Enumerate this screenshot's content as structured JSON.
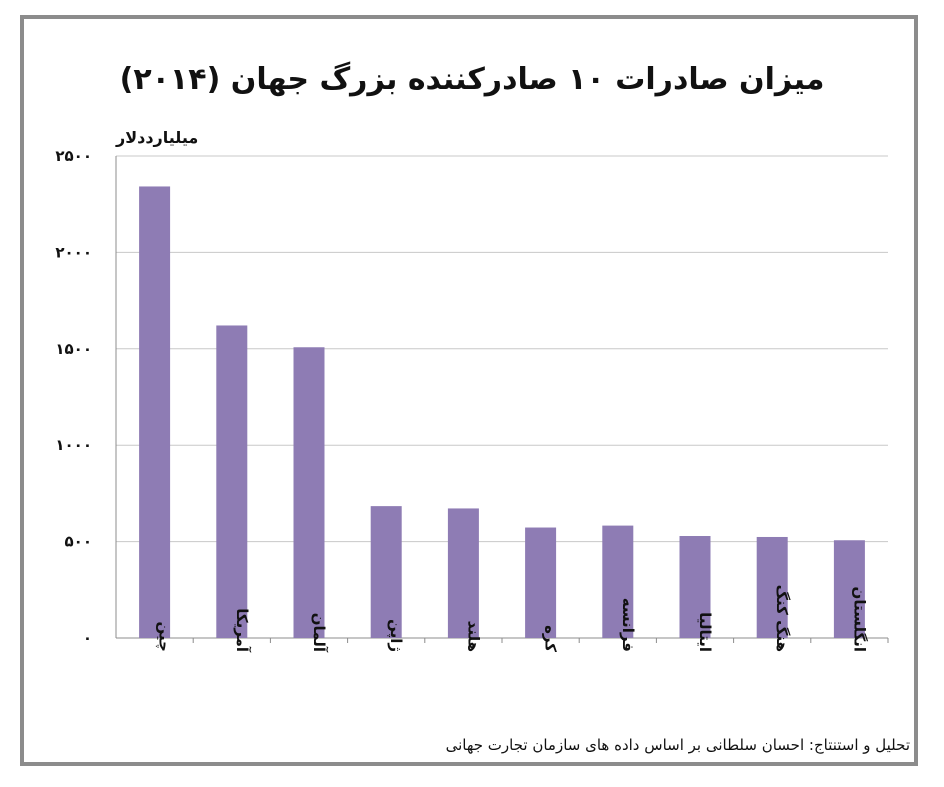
{
  "title": "میزان صادرات ۱۰ صادرکننده بزرگ جهان (۲۰۱۴)",
  "unit_label": "میلیارددلار",
  "source_note": "تحلیل و استنتاج: احسان سلطانی بر اساس داده های سازمان تجارت جهانی",
  "colors": {
    "bar": "#8e7cb4",
    "grid": "#c8c8c8",
    "axis": "#8c8c8c",
    "frame": "#8c8c8c"
  },
  "chart_data": {
    "type": "bar",
    "categories": [
      "چین",
      "آمریکا",
      "آلمان",
      "ژاپن",
      "هلند",
      "کره",
      "فرانسه",
      "ایتالیا",
      "هنگ کنگ",
      "انگلستان"
    ],
    "values": [
      2342,
      1621,
      1508,
      684,
      672,
      573,
      583,
      529,
      524,
      507
    ],
    "ylabel": "میلیارددلار",
    "ylim": [
      0,
      2500
    ],
    "yticks": [
      0,
      500,
      1000,
      1500,
      2000,
      2500
    ],
    "ytick_labels": [
      "۰",
      "۵۰۰",
      "۱۰۰۰",
      "۱۵۰۰",
      "۲۰۰۰",
      "۲۵۰۰"
    ],
    "grid": true,
    "legend": "none"
  }
}
